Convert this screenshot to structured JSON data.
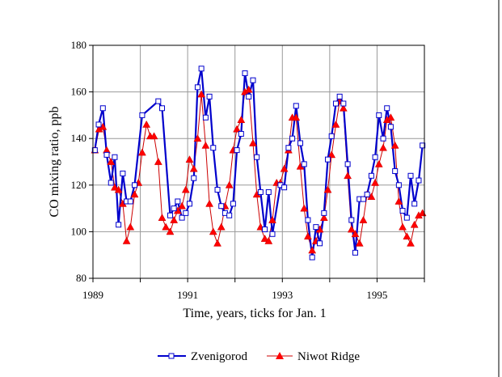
{
  "colors": {
    "zvenigorod": "#0000cc",
    "niwot": "#cc0000",
    "niwot_marker": "#ff0000",
    "grid": "#999999",
    "frame": "#000000"
  },
  "chart_data": {
    "type": "line",
    "xlabel": "Time, years, ticks for Jan. 1",
    "ylabel": "CO mixing ratio, ppb",
    "xlim": [
      1989,
      1996
    ],
    "ylim": [
      80,
      180
    ],
    "x_ticks": [
      "1989",
      "1991",
      "1993",
      "1995"
    ],
    "x_tick_values": [
      1989,
      1991,
      1993,
      1995
    ],
    "y_ticks": [
      "80",
      "100",
      "120",
      "140",
      "160",
      "180"
    ],
    "y_tick_values": [
      80,
      100,
      120,
      140,
      160,
      180
    ],
    "grid": true,
    "legend_position": "bottom",
    "series": [
      {
        "name": "Zvenigorod",
        "marker": "open-square",
        "points": [
          [
            1989.04,
            135
          ],
          [
            1989.12,
            146
          ],
          [
            1989.21,
            153
          ],
          [
            1989.29,
            133
          ],
          [
            1989.38,
            121
          ],
          [
            1989.46,
            132
          ],
          [
            1989.54,
            103
          ],
          [
            1989.63,
            125
          ],
          [
            1989.71,
            113
          ],
          [
            1989.79,
            113
          ],
          [
            1989.88,
            120
          ],
          [
            1990.04,
            150
          ],
          [
            1990.38,
            156
          ],
          [
            1990.46,
            153
          ],
          [
            1990.63,
            107
          ],
          [
            1990.71,
            110
          ],
          [
            1990.79,
            113
          ],
          [
            1990.88,
            106
          ],
          [
            1990.96,
            108
          ],
          [
            1991.04,
            112
          ],
          [
            1991.13,
            123
          ],
          [
            1991.21,
            162
          ],
          [
            1991.29,
            170
          ],
          [
            1991.38,
            149
          ],
          [
            1991.46,
            158
          ],
          [
            1991.54,
            136
          ],
          [
            1991.63,
            118
          ],
          [
            1991.71,
            111
          ],
          [
            1991.79,
            108
          ],
          [
            1991.88,
            107
          ],
          [
            1991.96,
            112
          ],
          [
            1992.04,
            135
          ],
          [
            1992.13,
            142
          ],
          [
            1992.21,
            168
          ],
          [
            1992.29,
            158
          ],
          [
            1992.38,
            165
          ],
          [
            1992.46,
            132
          ],
          [
            1992.54,
            117
          ],
          [
            1992.63,
            101
          ],
          [
            1992.71,
            117
          ],
          [
            1992.79,
            99
          ],
          [
            1992.96,
            120
          ],
          [
            1993.04,
            119
          ],
          [
            1993.13,
            136
          ],
          [
            1993.21,
            140
          ],
          [
            1993.29,
            154
          ],
          [
            1993.38,
            138
          ],
          [
            1993.46,
            129
          ],
          [
            1993.54,
            105
          ],
          [
            1993.63,
            89
          ],
          [
            1993.71,
            102
          ],
          [
            1993.79,
            95
          ],
          [
            1993.88,
            108
          ],
          [
            1993.96,
            131
          ],
          [
            1994.04,
            141
          ],
          [
            1994.13,
            155
          ],
          [
            1994.21,
            158
          ],
          [
            1994.29,
            155
          ],
          [
            1994.38,
            129
          ],
          [
            1994.46,
            105
          ],
          [
            1994.54,
            91
          ],
          [
            1994.63,
            114
          ],
          [
            1994.71,
            114
          ],
          [
            1994.79,
            116
          ],
          [
            1994.88,
            124
          ],
          [
            1994.96,
            132
          ],
          [
            1995.04,
            150
          ],
          [
            1995.13,
            140
          ],
          [
            1995.21,
            153
          ],
          [
            1995.29,
            145
          ],
          [
            1995.38,
            126
          ],
          [
            1995.46,
            120
          ],
          [
            1995.54,
            109
          ],
          [
            1995.63,
            106
          ],
          [
            1995.71,
            124
          ],
          [
            1995.79,
            112
          ],
          [
            1995.88,
            122
          ],
          [
            1995.96,
            137
          ]
        ]
      },
      {
        "name": "Niwot Ridge",
        "marker": "filled-triangle",
        "points": [
          [
            1989.04,
            135
          ],
          [
            1989.13,
            144
          ],
          [
            1989.21,
            145
          ],
          [
            1989.29,
            135
          ],
          [
            1989.38,
            130
          ],
          [
            1989.46,
            119
          ],
          [
            1989.54,
            118
          ],
          [
            1989.63,
            112
          ],
          [
            1989.71,
            96
          ],
          [
            1989.79,
            102
          ],
          [
            1989.88,
            116
          ],
          [
            1989.96,
            121
          ],
          [
            1990.04,
            134
          ],
          [
            1990.13,
            146
          ],
          [
            1990.21,
            141
          ],
          [
            1990.29,
            141
          ],
          [
            1990.38,
            130
          ],
          [
            1990.46,
            106
          ],
          [
            1990.54,
            102
          ],
          [
            1990.63,
            100
          ],
          [
            1990.71,
            105
          ],
          [
            1990.79,
            109
          ],
          [
            1990.88,
            111
          ],
          [
            1990.96,
            118
          ],
          [
            1991.04,
            131
          ],
          [
            1991.13,
            127
          ],
          [
            1991.21,
            140
          ],
          [
            1991.29,
            159
          ],
          [
            1991.38,
            137
          ],
          [
            1991.46,
            112
          ],
          [
            1991.54,
            100
          ],
          [
            1991.63,
            95
          ],
          [
            1991.71,
            102
          ],
          [
            1991.79,
            111
          ],
          [
            1991.88,
            120
          ],
          [
            1991.96,
            135
          ],
          [
            1992.04,
            144
          ],
          [
            1992.13,
            148
          ],
          [
            1992.21,
            160
          ],
          [
            1992.29,
            161
          ],
          [
            1992.38,
            138
          ],
          [
            1992.46,
            116
          ],
          [
            1992.54,
            102
          ],
          [
            1992.63,
            97
          ],
          [
            1992.71,
            96
          ],
          [
            1992.79,
            105
          ],
          [
            1992.88,
            121
          ],
          [
            1992.96,
            121
          ],
          [
            1993.04,
            127
          ],
          [
            1993.13,
            135
          ],
          [
            1993.21,
            149
          ],
          [
            1993.29,
            149
          ],
          [
            1993.38,
            128
          ],
          [
            1993.46,
            110
          ],
          [
            1993.54,
            98
          ],
          [
            1993.63,
            92
          ],
          [
            1993.71,
            96
          ],
          [
            1993.79,
            101
          ],
          [
            1993.88,
            106
          ],
          [
            1993.96,
            118
          ],
          [
            1994.04,
            133
          ],
          [
            1994.13,
            146
          ],
          [
            1994.21,
            156
          ],
          [
            1994.29,
            153
          ],
          [
            1994.38,
            124
          ],
          [
            1994.46,
            101
          ],
          [
            1994.54,
            99
          ],
          [
            1994.63,
            95
          ],
          [
            1994.71,
            105
          ],
          [
            1994.79,
            116
          ],
          [
            1994.88,
            115
          ],
          [
            1994.96,
            121
          ],
          [
            1995.04,
            129
          ],
          [
            1995.13,
            136
          ],
          [
            1995.21,
            148
          ],
          [
            1995.29,
            149
          ],
          [
            1995.38,
            137
          ],
          [
            1995.46,
            113
          ],
          [
            1995.54,
            102
          ],
          [
            1995.63,
            98
          ],
          [
            1995.71,
            95
          ],
          [
            1995.79,
            103
          ],
          [
            1995.88,
            107
          ],
          [
            1995.96,
            108
          ]
        ]
      }
    ]
  }
}
